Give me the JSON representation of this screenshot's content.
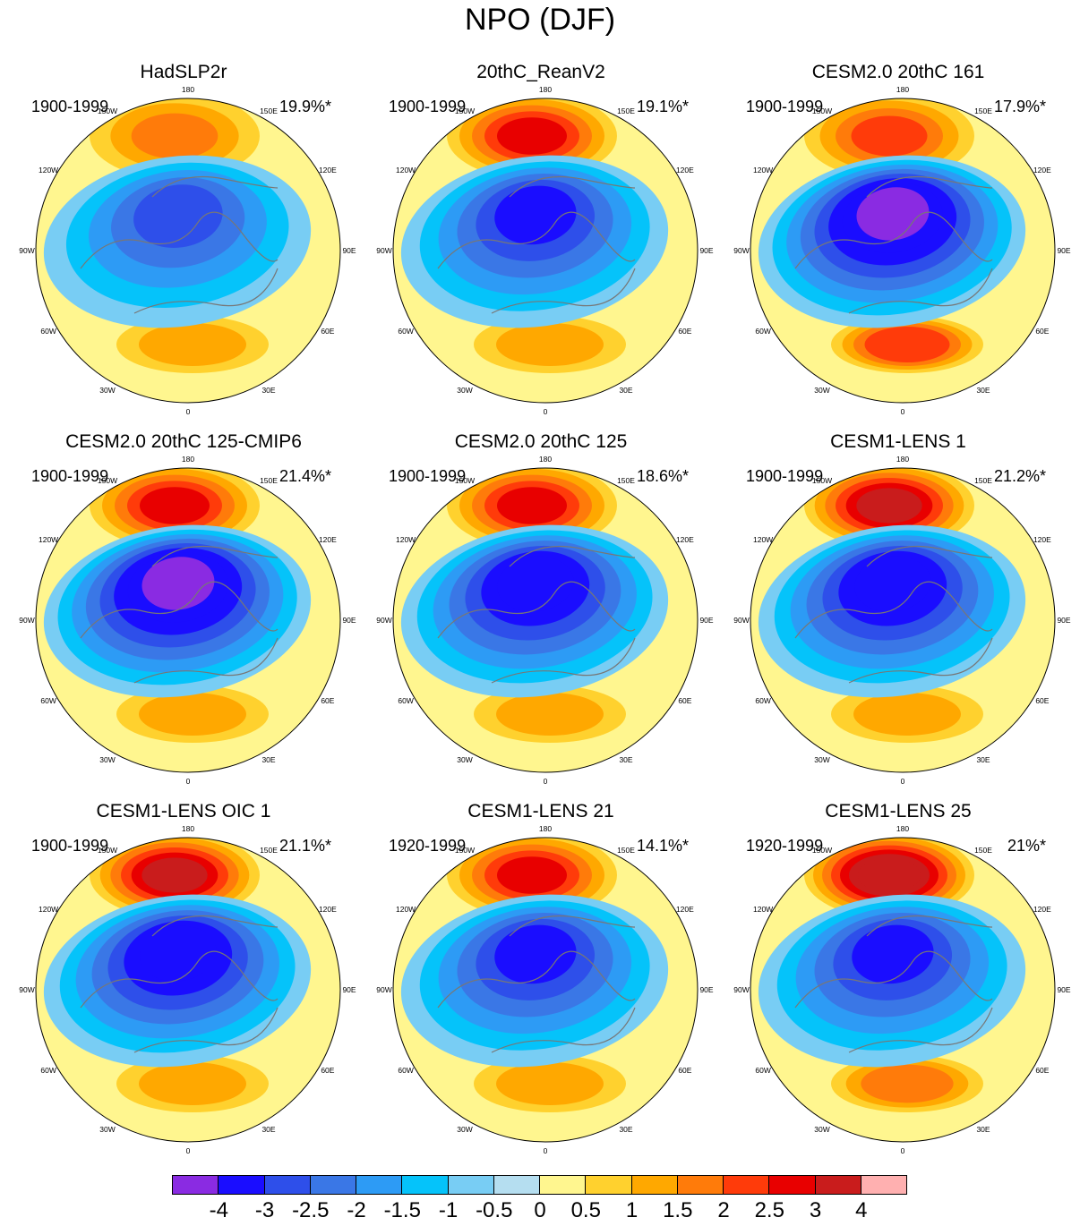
{
  "figure_title": "NPO (DJF)",
  "lon_labels": [
    "180",
    "150E",
    "120E",
    "90E",
    "60E",
    "30E",
    "0",
    "30W",
    "60W",
    "90W",
    "120W",
    "150W"
  ],
  "panels": [
    {
      "title": "HadSLP2r",
      "period": "1900-1999",
      "variance": "19.9%*",
      "center_low": -2.5,
      "pacific_high": 1.5,
      "atlantic_high": 1.0
    },
    {
      "title": "20thC_ReanV2",
      "period": "1900-1999",
      "variance": "19.1%*",
      "center_low": -3.0,
      "pacific_high": 2.5,
      "atlantic_high": 1.0
    },
    {
      "title": "CESM2.0 20thC 161",
      "period": "1900-1999",
      "variance": "17.9%*",
      "center_low": -4.0,
      "pacific_high": 2.0,
      "atlantic_high": 2.0
    },
    {
      "title": "CESM2.0 20thC 125-CMIP6",
      "period": "1900-1999",
      "variance": "21.4%*",
      "center_low": -4.0,
      "pacific_high": 2.5,
      "atlantic_high": 1.0
    },
    {
      "title": "CESM2.0 20thC 125",
      "period": "1900-1999",
      "variance": "18.6%*",
      "center_low": -3.5,
      "pacific_high": 2.5,
      "atlantic_high": 1.0
    },
    {
      "title": "CESM1-LENS 1",
      "period": "1900-1999",
      "variance": "21.2%*",
      "center_low": -3.5,
      "pacific_high": 3.0,
      "atlantic_high": 1.0
    },
    {
      "title": "CESM1-LENS OIC 1",
      "period": "1900-1999",
      "variance": "21.1%*",
      "center_low": -3.5,
      "pacific_high": 3.0,
      "atlantic_high": 1.0
    },
    {
      "title": "CESM1-LENS 21",
      "period": "1920-1999",
      "variance": "14.1%*",
      "center_low": -3.0,
      "pacific_high": 2.5,
      "atlantic_high": 1.0
    },
    {
      "title": "CESM1-LENS 25",
      "period": "1920-1999",
      "variance": "21%*",
      "center_low": -3.0,
      "pacific_high": 3.5,
      "atlantic_high": 1.5
    }
  ],
  "colorbar": {
    "colors": [
      "#8a2be2",
      "#1a0dff",
      "#2e4fea",
      "#3a77e6",
      "#2d9bf5",
      "#05c3fa",
      "#78cdf4",
      "#b5def0",
      "#fff68f",
      "#ffd12e",
      "#ffa800",
      "#ff7b0a",
      "#ff3b0a",
      "#e80000",
      "#c91c1c",
      "#ffb0b0"
    ],
    "labels": [
      "-4",
      "-3",
      "-2.5",
      "-2",
      "-1.5",
      "-1",
      "-0.5",
      "0",
      "0.5",
      "1",
      "1.5",
      "2",
      "2.5",
      "3",
      "4"
    ]
  }
}
